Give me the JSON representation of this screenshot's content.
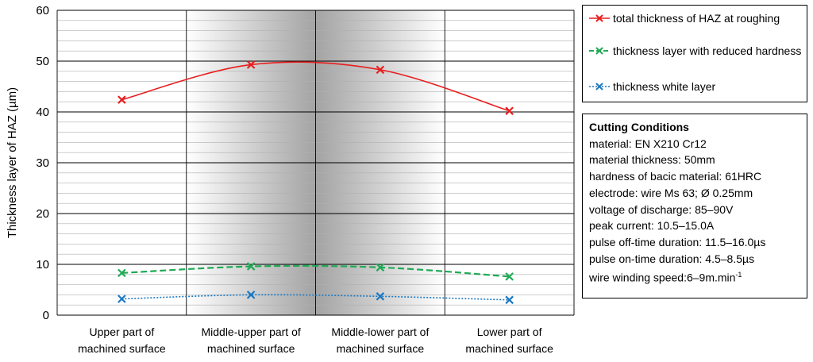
{
  "chart_data": {
    "type": "line",
    "ylabel": "Thickness layer of HAZ  (µm)",
    "xlabel": "",
    "ylim": [
      0,
      60
    ],
    "yticks": [
      0,
      10,
      20,
      30,
      40,
      50,
      60
    ],
    "grid": true,
    "legend_position": "right",
    "categories": [
      [
        "Upper part of",
        "machined surface"
      ],
      [
        "Middle-upper part of",
        "machined surface"
      ],
      [
        "Middle-lower part of",
        "machined surface"
      ],
      [
        "Lower part of",
        "machined surface"
      ]
    ],
    "series": [
      {
        "name": "total thickness of HAZ at roughing",
        "values": [
          42.4,
          49.3,
          48.3,
          40.2
        ],
        "color": "#e81e1e",
        "dash": "solid"
      },
      {
        "name": "thickness layer with reduced hardness",
        "values": [
          8.3,
          9.6,
          9.4,
          7.6
        ],
        "color": "#1faa55",
        "dash": "dashed"
      },
      {
        "name": "thickness white layer",
        "values": [
          3.2,
          4.0,
          3.7,
          3.0
        ],
        "color": "#1a78c2",
        "dash": "dotted"
      }
    ]
  },
  "legend": {
    "items": [
      {
        "label": "total thickness of HAZ at roughing"
      },
      {
        "label": "thickness layer with reduced hardness"
      },
      {
        "label": "thickness white layer"
      }
    ]
  },
  "conditions": {
    "title": "Cutting Conditions",
    "lines": [
      "material: EN X210 Cr12",
      "material thickness: 50mm",
      "hardness of bacic material:  61HRC",
      "electrode: wire Ms 63; Ø 0.25mm",
      "voltage of discharge:  85–90V",
      "peak current: 10.5–15.0A",
      "pulse off-time duration: 11.5–16.0µs",
      "pulse on-time duration: 4.5–8.5µs"
    ],
    "last_line_prefix": "wire winding speed:6–9m.min",
    "last_line_sup": "-1"
  }
}
